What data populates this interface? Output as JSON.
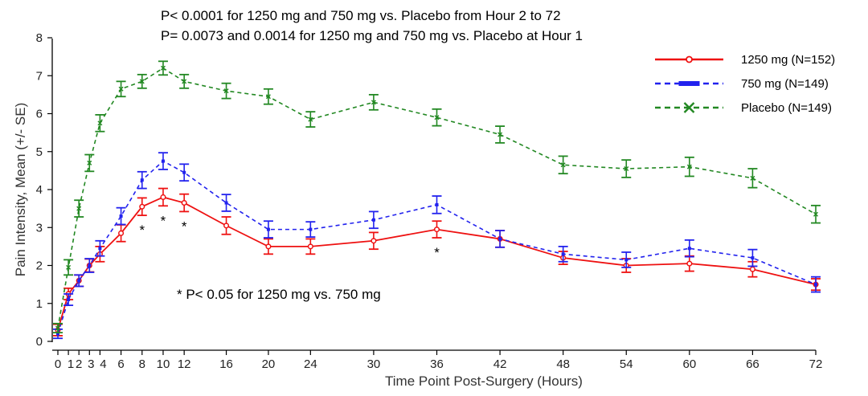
{
  "chart_data": {
    "type": "line",
    "annotations": [
      "P< 0.0001 for 1250 mg and 750 mg vs. Placebo from Hour 2 to 72",
      "P= 0.0073 and 0.0014 for 1250 mg and 750 mg vs. Placebo at Hour 1",
      "* P< 0.05 for 1250 mg vs. 750 mg"
    ],
    "xlabel": "Time Point Post-Surgery (Hours)",
    "ylabel": "Pain Intensity, Mean (+/- SE)",
    "ylim": [
      0,
      8
    ],
    "yticks": [
      0,
      1,
      2,
      3,
      4,
      5,
      6,
      7,
      8
    ],
    "xticks": [
      0,
      1,
      2,
      3,
      4,
      6,
      8,
      10,
      12,
      16,
      20,
      24,
      30,
      36,
      42,
      48,
      54,
      60,
      66,
      72
    ],
    "legend_position": "top-right",
    "significance_markers_at_x": [
      8,
      10,
      12,
      36
    ],
    "x": [
      0,
      1,
      2,
      3,
      4,
      6,
      8,
      10,
      12,
      16,
      20,
      24,
      30,
      36,
      42,
      48,
      54,
      60,
      66,
      72
    ],
    "series": [
      {
        "name": "1250 mg (N=152)",
        "color": "#ee1111",
        "style": "solid",
        "marker": "circle",
        "values": [
          0.3,
          1.25,
          1.6,
          2.0,
          2.3,
          2.85,
          3.55,
          3.8,
          3.65,
          3.05,
          2.5,
          2.5,
          2.65,
          2.95,
          2.7,
          2.2,
          2.0,
          2.05,
          1.9,
          1.5
        ],
        "se": [
          0.15,
          0.15,
          0.15,
          0.17,
          0.2,
          0.22,
          0.23,
          0.23,
          0.23,
          0.23,
          0.2,
          0.2,
          0.22,
          0.22,
          0.22,
          0.17,
          0.18,
          0.2,
          0.2,
          0.15
        ]
      },
      {
        "name": "750 mg (N=149)",
        "color": "#2222ee",
        "style": "dashed",
        "marker": "square",
        "values": [
          0.2,
          1.1,
          1.6,
          2.0,
          2.45,
          3.3,
          4.25,
          4.75,
          4.45,
          3.65,
          2.95,
          2.95,
          3.2,
          3.6,
          2.7,
          2.3,
          2.15,
          2.45,
          2.2,
          1.5
        ],
        "se": [
          0.12,
          0.15,
          0.15,
          0.18,
          0.2,
          0.22,
          0.22,
          0.22,
          0.22,
          0.22,
          0.22,
          0.2,
          0.22,
          0.23,
          0.22,
          0.2,
          0.2,
          0.22,
          0.22,
          0.2
        ]
      },
      {
        "name": "Placebo (N=149)",
        "color": "#228822",
        "style": "dashed",
        "marker": "x",
        "values": [
          0.35,
          1.95,
          3.5,
          4.7,
          5.75,
          6.65,
          6.85,
          7.2,
          6.85,
          6.6,
          6.45,
          5.85,
          6.3,
          5.9,
          5.45,
          4.65,
          4.55,
          4.6,
          4.3,
          3.35
        ],
        "se": [
          0.12,
          0.2,
          0.22,
          0.22,
          0.22,
          0.2,
          0.18,
          0.18,
          0.18,
          0.2,
          0.2,
          0.2,
          0.2,
          0.22,
          0.22,
          0.23,
          0.23,
          0.25,
          0.25,
          0.23
        ]
      }
    ]
  }
}
